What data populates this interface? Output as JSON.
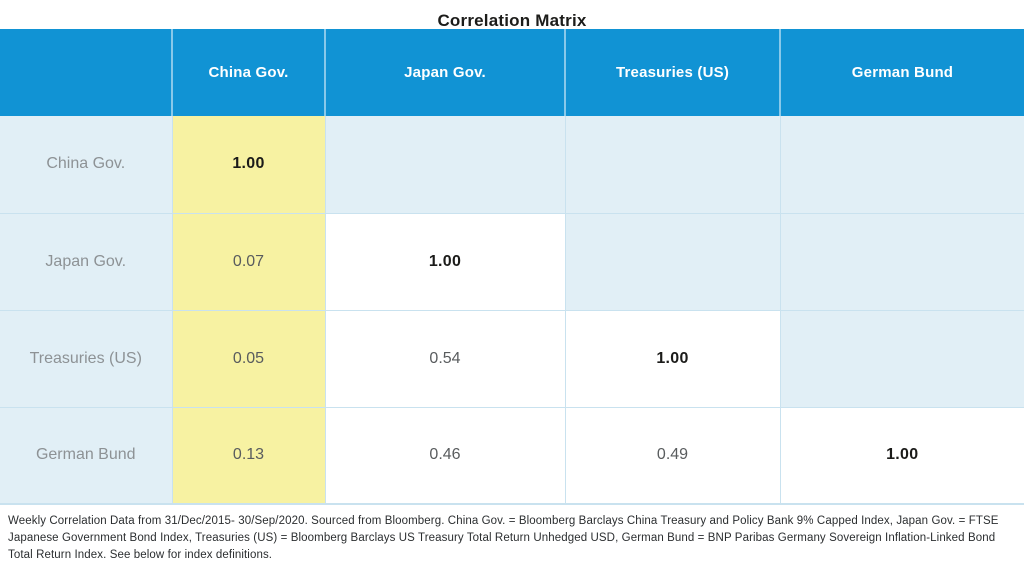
{
  "title": "Correlation Matrix",
  "chart_data": {
    "type": "table",
    "subtype": "correlation-matrix",
    "title": "Correlation Matrix",
    "columns": [
      "",
      "China Gov.",
      "Japan Gov.",
      "Treasuries (US)",
      "German Bund"
    ],
    "rows": [
      {
        "label": "China Gov.",
        "values": [
          "1.00",
          "",
          "",
          ""
        ]
      },
      {
        "label": "Japan Gov.",
        "values": [
          "0.07",
          "1.00",
          "",
          ""
        ]
      },
      {
        "label": "Treasuries (US)",
        "values": [
          "0.05",
          "0.54",
          "1.00",
          ""
        ]
      },
      {
        "label": "German Bund",
        "values": [
          "0.13",
          "0.46",
          "0.49",
          "1.00"
        ]
      }
    ],
    "matrix_numeric": [
      [
        1.0,
        null,
        null,
        null
      ],
      [
        0.07,
        1.0,
        null,
        null
      ],
      [
        0.05,
        0.54,
        1.0,
        null
      ],
      [
        0.13,
        0.46,
        0.49,
        1.0
      ]
    ],
    "layout_hints": {
      "first_value_column_highlight": "yellow",
      "diagonal_style": "bold",
      "lower_triangle_bg": "white",
      "upper_triangle_bg": "light-blue"
    },
    "footnote": "Weekly Correlation Data from 31/Dec/2015- 30/Sep/2020. Sourced from Bloomberg. China Gov. = Bloomberg Barclays China Treasury and Policy Bank 9% Capped Index, Japan Gov. = FTSE Japanese Government Bond Index, Treasuries (US) = Bloomberg Barclays US Treasury Total Return Unhedged USD, German Bund = BNP Paribas Germany Sovereign Inflation-Linked Bond Total Return Index. See below for index definitions."
  },
  "colors": {
    "header_bg": "#1193d4",
    "header_text": "#ffffff",
    "cell_light_blue": "#e1eff6",
    "cell_yellow": "#f7f2a2",
    "cell_white": "#ffffff",
    "grid_line": "#c9e2ef",
    "label_text": "#8d9295",
    "value_text": "#595c5e",
    "diagonal_text": "#1b1b19",
    "title_text": "#1c1c1a",
    "footnote_text": "#2b2e30"
  }
}
